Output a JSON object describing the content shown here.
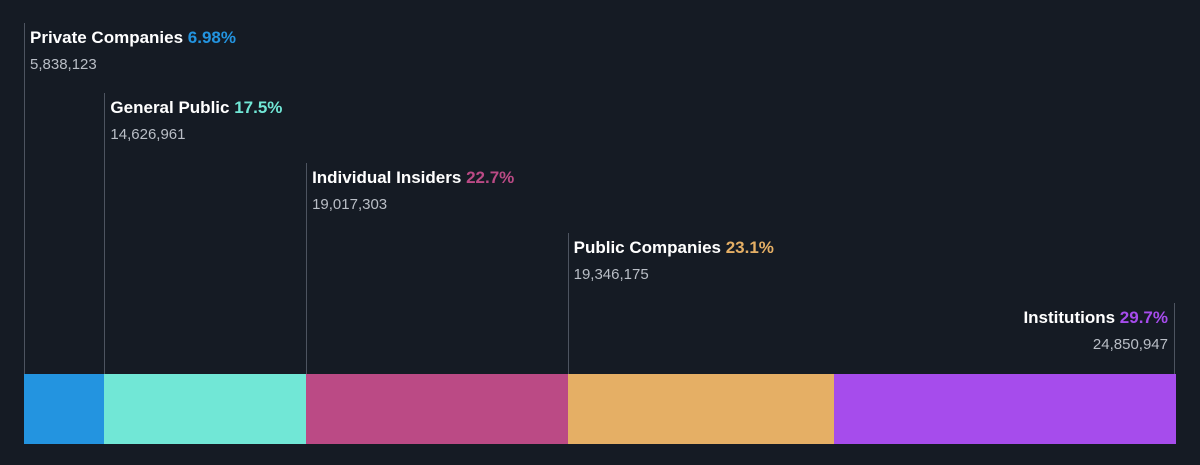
{
  "chart_data": {
    "type": "bar",
    "orientation": "horizontal-stacked",
    "categories": [
      "Private Companies",
      "General Public",
      "Individual Insiders",
      "Public Companies",
      "Institutions"
    ],
    "percent_labels": [
      "6.98%",
      "17.5%",
      "22.7%",
      "23.1%",
      "29.7%"
    ],
    "values": [
      6.98,
      17.5,
      22.7,
      23.1,
      29.7
    ],
    "shares": [
      5838123,
      14626961,
      19017303,
      19346175,
      24850947
    ],
    "share_labels": [
      "5,838,123",
      "14,626,961",
      "19,017,303",
      "19,346,175",
      "24,850,947"
    ],
    "colors": [
      "#2394e0",
      "#71e7d6",
      "#bb4a85",
      "#e5af65",
      "#a64cec"
    ],
    "background": "#151b24"
  }
}
